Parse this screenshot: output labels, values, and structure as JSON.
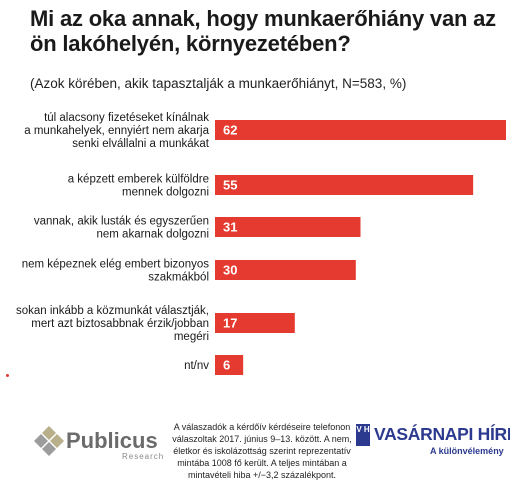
{
  "chart_data": {
    "type": "bar",
    "orientation": "horizontal",
    "title": "Mi az oka annak, hogy munkaerőhiány van az ön lakóhelyén, környezetében?",
    "subtitle": "(Azok körében, akik tapasztalják a munkaerőhiányt, N=583, %)",
    "categories": [
      [
        "túl alacsony fizetéseket kínálnak",
        "a munkahelyek, ennyiért nem akarja",
        "senki elvállalni a munkákat"
      ],
      [
        "a képzett emberek külföldre",
        "mennek dolgozni"
      ],
      [
        "vannak, akik lusták és egyszerűen",
        "nem akarnak dolgozni"
      ],
      [
        "nem képeznek elég embert bizonyos",
        "szakmákból"
      ],
      [
        "sokan inkább a közmunkát választják,",
        "mert azt biztosabbnak érzik/jobban",
        "megéri"
      ],
      [
        "nt/nv"
      ]
    ],
    "values": [
      62,
      55,
      31,
      30,
      17,
      6
    ],
    "bar_color": "#e53a2f",
    "xlim": [
      0,
      62
    ],
    "grid": false,
    "legend": "none"
  },
  "footer": {
    "note": "A válaszadók a kérdőív kérdéseire telefonon válaszoltak 2017. június 9–13. között. A nem, életkor és iskolázottság szerint reprezentatív mintába 1008 fő került. A teljes mintában a mintavételi hiba +/−3,2 százalékpont."
  },
  "logos": {
    "publicus": {
      "name": "Publicus",
      "sub": "Research"
    },
    "vasarnapi": {
      "icon": "V H",
      "name": "VASÁRNAPI HÍREK",
      "sub": "A különvélemény"
    }
  },
  "colors": {
    "accent": "#e53a2f",
    "brand_blue": "#2b3a8f",
    "logo_grey": "#6b6b6b"
  }
}
